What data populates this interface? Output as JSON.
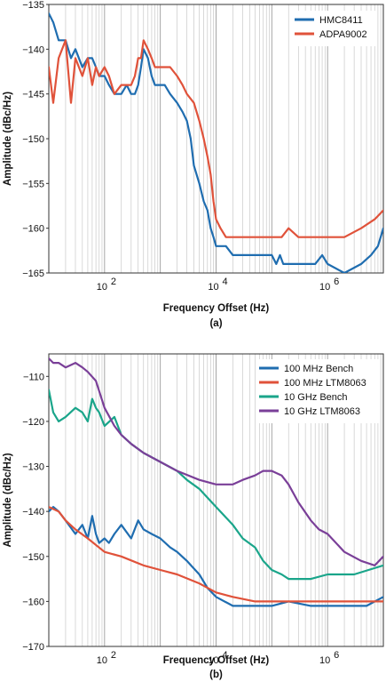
{
  "chart_data": [
    {
      "type": "line",
      "panel_label": "(a)",
      "xlabel": "Frequency Offset (Hz)",
      "ylabel": "Amplitude (dBc/Hz)",
      "xscale": "log",
      "xlim": [
        10,
        10000000
      ],
      "ylim": [
        -165,
        -135
      ],
      "yticks": [
        -135,
        -140,
        -145,
        -150,
        -155,
        -160,
        -165
      ],
      "xticks": [
        {
          "value": 100,
          "label": "10",
          "exp": "2"
        },
        {
          "value": 10000,
          "label": "10",
          "exp": "4"
        },
        {
          "value": 1000000,
          "label": "10",
          "exp": "6"
        }
      ],
      "grid": "vertical",
      "legend_position": "top-right",
      "series": [
        {
          "name": "HMC8411",
          "color": "#1f6db0",
          "x": [
            10,
            12,
            15,
            20,
            25,
            30,
            40,
            50,
            60,
            70,
            80,
            100,
            120,
            150,
            200,
            250,
            300,
            350,
            400,
            450,
            500,
            600,
            700,
            800,
            1000,
            1200,
            1500,
            2000,
            2500,
            3000,
            3500,
            4000,
            5000,
            6000,
            7000,
            8000,
            9000,
            10000,
            12000,
            15000,
            20000,
            30000,
            50000,
            70000,
            100000,
            120000,
            140000,
            160000,
            200000,
            300000,
            400000,
            500000,
            600000,
            800000,
            1000000,
            2000000,
            4000000,
            6000000,
            8000000,
            10000000
          ],
          "y": [
            -136,
            -137,
            -139,
            -139,
            -141,
            -140,
            -142,
            -141,
            -141,
            -142,
            -143,
            -143,
            -144,
            -145,
            -145,
            -144,
            -145,
            -145,
            -144,
            -142,
            -140,
            -141,
            -143,
            -144,
            -144,
            -144,
            -145,
            -146,
            -147,
            -148,
            -150,
            -153,
            -155,
            -157,
            -158,
            -160,
            -161,
            -162,
            -162,
            -162,
            -163,
            -163,
            -163,
            -163,
            -163,
            -164,
            -163,
            -164,
            -164,
            -164,
            -164,
            -164,
            -164,
            -163,
            -164,
            -165,
            -164,
            -163,
            -162,
            -160
          ]
        },
        {
          "name": "ADPA9002",
          "color": "#e0523a",
          "x": [
            10,
            12,
            15,
            20,
            25,
            30,
            40,
            50,
            60,
            70,
            80,
            100,
            120,
            150,
            200,
            250,
            300,
            350,
            400,
            450,
            500,
            600,
            700,
            800,
            1000,
            1200,
            1500,
            2000,
            2500,
            3000,
            4000,
            5000,
            6000,
            7000,
            8000,
            9000,
            10000,
            12000,
            15000,
            20000,
            30000,
            50000,
            70000,
            100000,
            120000,
            150000,
            200000,
            300000,
            500000,
            1000000,
            2000000,
            4000000,
            7000000,
            10000000
          ],
          "y": [
            -142,
            -146,
            -141,
            -139,
            -146,
            -141,
            -143,
            -141,
            -144,
            -142,
            -143,
            -142,
            -143,
            -145,
            -144,
            -144,
            -144,
            -143,
            -141,
            -141,
            -139,
            -140,
            -141,
            -142,
            -142,
            -142,
            -142,
            -143,
            -144,
            -145,
            -146,
            -148,
            -150,
            -152,
            -154,
            -157,
            -159,
            -160,
            -161,
            -161,
            -161,
            -161,
            -161,
            -161,
            -161,
            -161,
            -160,
            -161,
            -161,
            -161,
            -161,
            -160,
            -159,
            -158
          ]
        }
      ]
    },
    {
      "type": "line",
      "panel_label": "(b)",
      "xlabel": "Frequency Offset (Hz)",
      "ylabel": "Amplitude (dBc/Hz)",
      "xscale": "log",
      "xlim": [
        10,
        10000000
      ],
      "ylim": [
        -170,
        -105
      ],
      "yticks": [
        -110,
        -120,
        -130,
        -140,
        -150,
        -160,
        -170
      ],
      "xticks": [
        {
          "value": 100,
          "label": "10",
          "exp": "2"
        },
        {
          "value": 10000,
          "label": "10",
          "exp": "4"
        },
        {
          "value": 1000000,
          "label": "10",
          "exp": "6"
        }
      ],
      "grid": "vertical",
      "legend_position": "top-right",
      "series": [
        {
          "name": "100 MHz Bench",
          "color": "#1f6db0",
          "x": [
            10,
            12,
            15,
            20,
            30,
            40,
            50,
            60,
            70,
            80,
            100,
            120,
            150,
            200,
            300,
            400,
            500,
            700,
            1000,
            1500,
            2000,
            3000,
            5000,
            7000,
            10000,
            20000,
            50000,
            100000,
            200000,
            500000,
            1000000,
            2000000,
            5000000,
            10000000
          ],
          "y": [
            -140,
            -139,
            -140,
            -142,
            -145,
            -143,
            -146,
            -141,
            -145,
            -147,
            -146,
            -147,
            -145,
            -143,
            -146,
            -142,
            -144,
            -145,
            -146,
            -148,
            -149,
            -151,
            -154,
            -157,
            -159,
            -161,
            -161,
            -161,
            -160,
            -161,
            -161,
            -161,
            -161,
            -159
          ]
        },
        {
          "name": "100 MHz LTM8063",
          "color": "#e0523a",
          "x": [
            10,
            15,
            20,
            30,
            50,
            100,
            200,
            500,
            1000,
            2000,
            5000,
            10000,
            20000,
            50000,
            100000,
            300000,
            1000000,
            3000000,
            10000000
          ],
          "y": [
            -139,
            -140,
            -142,
            -144,
            -146,
            -149,
            -150,
            -152,
            -153,
            -154,
            -156,
            -158,
            -159,
            -160,
            -160,
            -160,
            -160,
            -160,
            -160
          ]
        },
        {
          "name": "10 GHz Bench",
          "color": "#1aa58a",
          "x": [
            10,
            12,
            15,
            20,
            30,
            40,
            50,
            60,
            70,
            80,
            100,
            150,
            200,
            300,
            500,
            1000,
            2000,
            3000,
            5000,
            10000,
            20000,
            30000,
            50000,
            70000,
            100000,
            150000,
            200000,
            500000,
            1000000,
            3000000,
            10000000
          ],
          "y": [
            -113,
            -118,
            -120,
            -119,
            -117,
            -118,
            -120,
            -115,
            -117,
            -118,
            -121,
            -119,
            -123,
            -125,
            -127,
            -129,
            -131,
            -133,
            -135,
            -139,
            -143,
            -146,
            -148,
            -151,
            -153,
            -154,
            -155,
            -155,
            -154,
            -154,
            -152
          ]
        },
        {
          "name": "10 GHz LTM8063",
          "color": "#7a3f98",
          "x": [
            10,
            12,
            15,
            20,
            30,
            40,
            50,
            70,
            100,
            150,
            200,
            300,
            500,
            1000,
            2000,
            5000,
            10000,
            20000,
            30000,
            50000,
            70000,
            100000,
            150000,
            200000,
            300000,
            500000,
            700000,
            1000000,
            2000000,
            4000000,
            7000000,
            10000000
          ],
          "y": [
            -106,
            -107,
            -107,
            -108,
            -107,
            -108,
            -109,
            -111,
            -117,
            -121,
            -123,
            -125,
            -127,
            -129,
            -131,
            -133,
            -134,
            -134,
            -133,
            -132,
            -131,
            -131,
            -132,
            -134,
            -138,
            -142,
            -144,
            -145,
            -149,
            -151,
            -152,
            -150
          ]
        }
      ]
    }
  ]
}
